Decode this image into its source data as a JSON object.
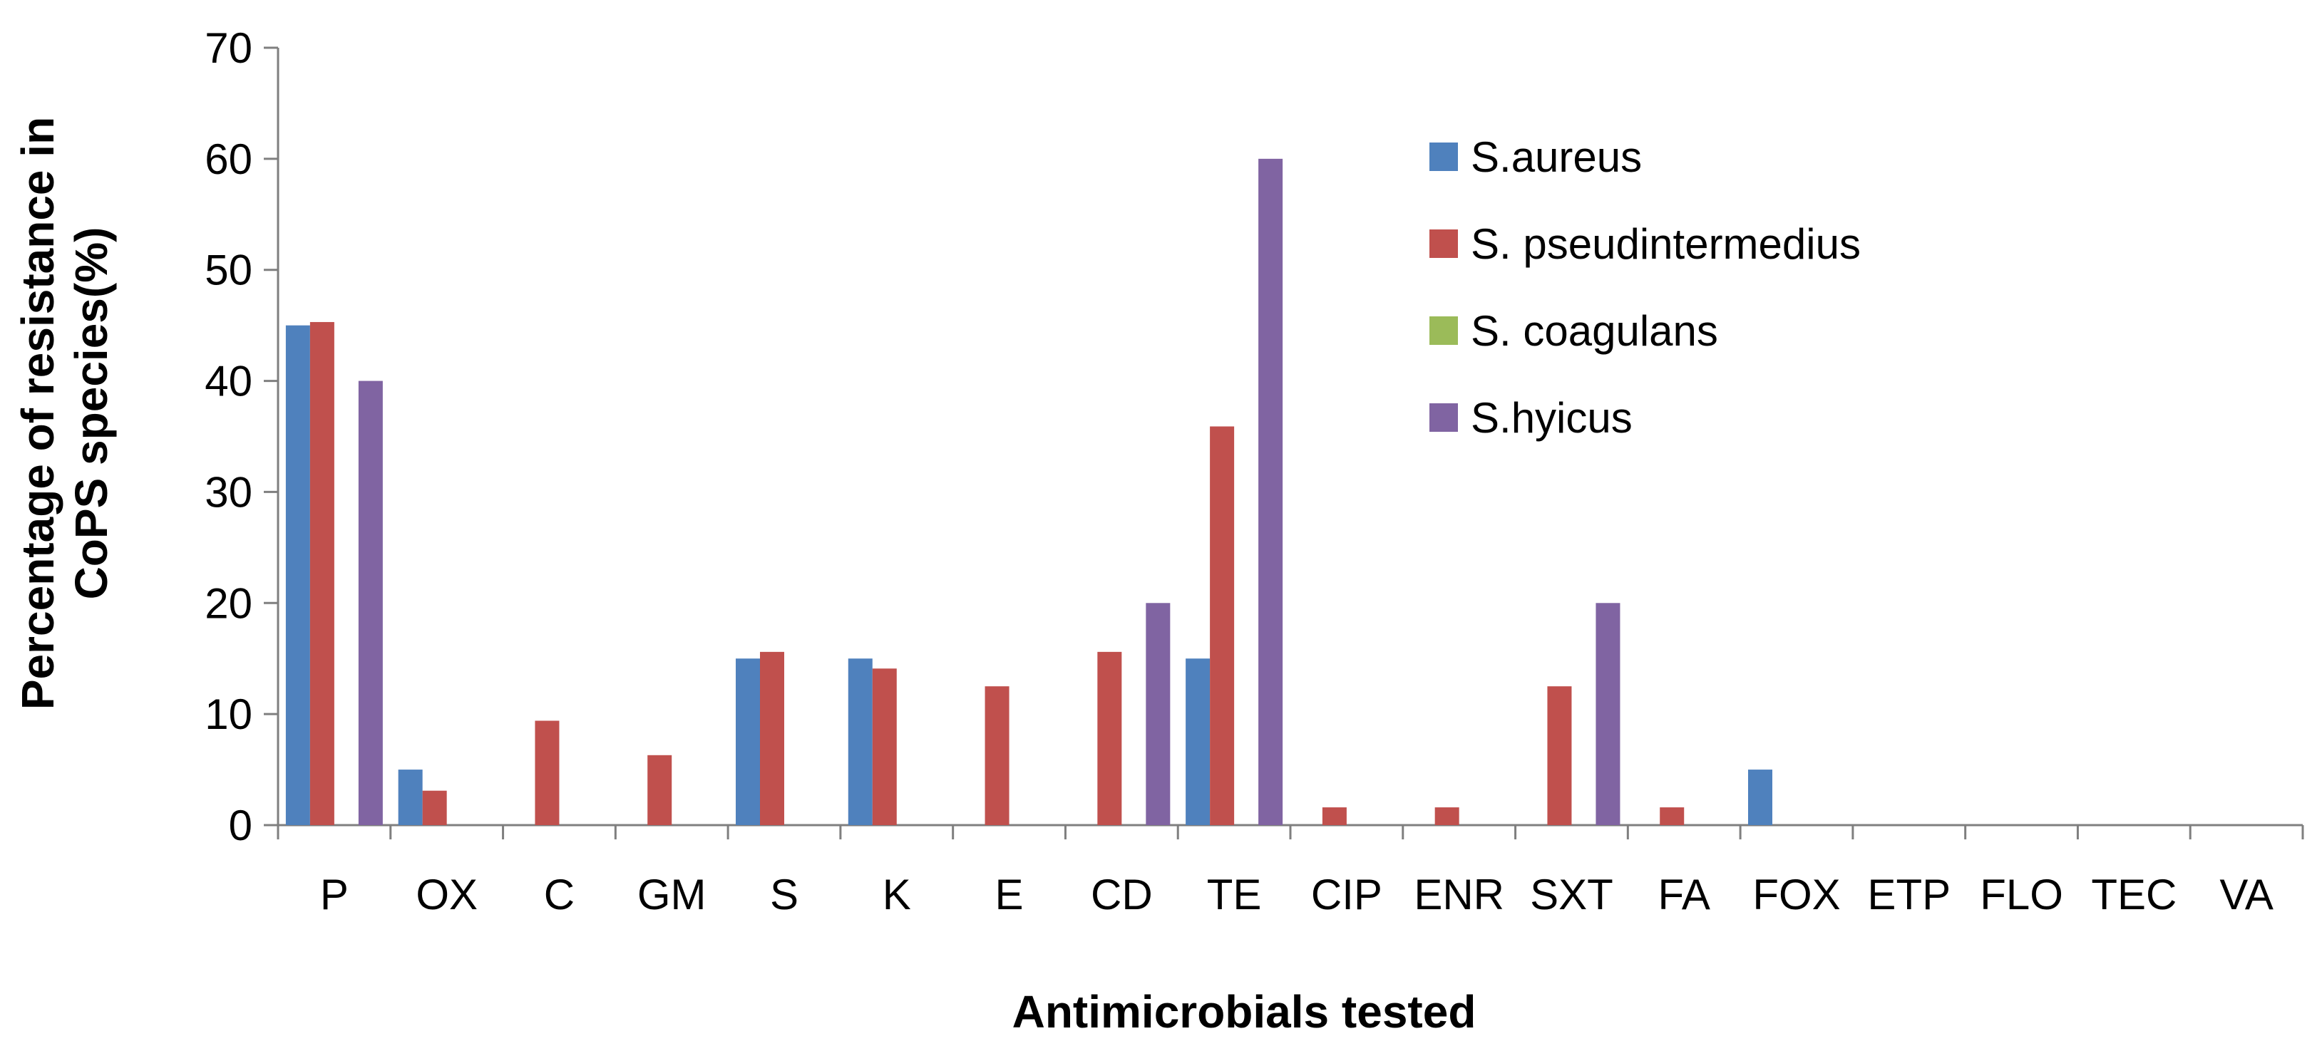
{
  "chart_data": {
    "type": "bar",
    "title": "",
    "xlabel": "Antimicrobials tested",
    "ylabel_line1": "Percentage of resistance in",
    "ylabel_line2": "CoPS species(%)",
    "ylim": [
      0,
      70
    ],
    "yticks": [
      0,
      10,
      20,
      30,
      40,
      50,
      60,
      70
    ],
    "ytick_labels": [
      "0",
      "10",
      "20",
      "30",
      "40",
      "50",
      "60",
      "70"
    ],
    "grid": false,
    "legend_position": "top-right",
    "categories": [
      "P",
      "OX",
      "C",
      "GM",
      "S",
      "K",
      "E",
      "CD",
      "TE",
      "CIP",
      "ENR",
      "SXT",
      "FA",
      "FOX",
      "ETP",
      "FLO",
      "TEC",
      "VA"
    ],
    "series": [
      {
        "name": "S.aureus",
        "color": "#4F81BD",
        "values": [
          45,
          5,
          0,
          0,
          15,
          15,
          0,
          0,
          15,
          0,
          0,
          0,
          0,
          5,
          0,
          0,
          0,
          0
        ]
      },
      {
        "name": "S. pseudintermedius",
        "color": "#C0504D",
        "values": [
          45.3,
          3.1,
          9.4,
          6.3,
          15.6,
          14.1,
          12.5,
          15.6,
          35.9,
          1.6,
          1.6,
          12.5,
          1.6,
          0,
          0,
          0,
          0,
          0
        ]
      },
      {
        "name": "S. coagulans",
        "color": "#9BBB59",
        "values": [
          0,
          0,
          0,
          0,
          0,
          0,
          0,
          0,
          0,
          0,
          0,
          0,
          0,
          0,
          0,
          0,
          0,
          0
        ]
      },
      {
        "name": "S.hyicus",
        "color": "#8064A2",
        "values": [
          40,
          0,
          0,
          0,
          0,
          0,
          0,
          20,
          60,
          0,
          0,
          20,
          0,
          0,
          0,
          0,
          0,
          0
        ]
      }
    ]
  }
}
